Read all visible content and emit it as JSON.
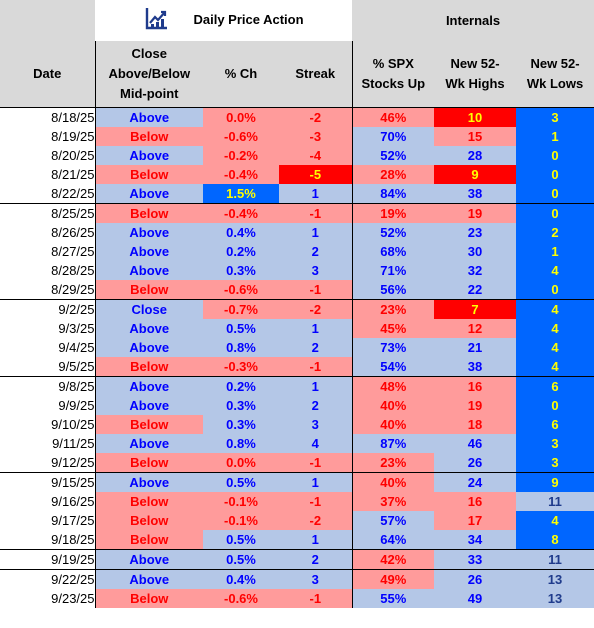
{
  "header": {
    "left_group": "Daily Price Action",
    "right_group": "Internals",
    "logo_icon": "chart-logo-icon",
    "columns": {
      "date": "Date",
      "close": [
        "Close",
        "Above/Below",
        "Mid-point"
      ],
      "pct": "% Ch",
      "streak": "Streak",
      "spx": [
        "% SPX",
        "Stocks Up"
      ],
      "highs": [
        "New 52-",
        "Wk Highs"
      ],
      "lows": [
        "New 52-",
        "Wk Lows"
      ]
    }
  },
  "colors": {
    "blue_fill": "#b4c7e7",
    "blue_text": "#0000ff",
    "red_fill": "#ff9b9b",
    "red_text": "#ff0000",
    "bright_red": "#ff0000",
    "bright_blue": "#0066ff",
    "highlight_text": "#ffff00",
    "header_gray": "#d9d9d9"
  },
  "rows": [
    {
      "date": "8/18/25",
      "close": "Above",
      "pct": "0.0%",
      "streak": "-2",
      "spx": "46%",
      "highs": "10",
      "lows": "3"
    },
    {
      "date": "8/19/25",
      "close": "Below",
      "pct": "-0.6%",
      "streak": "-3",
      "spx": "70%",
      "highs": "15",
      "lows": "1"
    },
    {
      "date": "8/20/25",
      "close": "Above",
      "pct": "-0.2%",
      "streak": "-4",
      "spx": "52%",
      "highs": "28",
      "lows": "0"
    },
    {
      "date": "8/21/25",
      "close": "Below",
      "pct": "-0.4%",
      "streak": "-5",
      "spx": "28%",
      "highs": "9",
      "lows": "0"
    },
    {
      "date": "8/22/25",
      "close": "Above",
      "pct": "1.5%",
      "streak": "1",
      "spx": "84%",
      "highs": "38",
      "lows": "0"
    },
    {
      "date": "8/25/25",
      "close": "Below",
      "pct": "-0.4%",
      "streak": "-1",
      "spx": "19%",
      "highs": "19",
      "lows": "0"
    },
    {
      "date": "8/26/25",
      "close": "Above",
      "pct": "0.4%",
      "streak": "1",
      "spx": "52%",
      "highs": "23",
      "lows": "2"
    },
    {
      "date": "8/27/25",
      "close": "Above",
      "pct": "0.2%",
      "streak": "2",
      "spx": "68%",
      "highs": "30",
      "lows": "1"
    },
    {
      "date": "8/28/25",
      "close": "Above",
      "pct": "0.3%",
      "streak": "3",
      "spx": "71%",
      "highs": "32",
      "lows": "4"
    },
    {
      "date": "8/29/25",
      "close": "Below",
      "pct": "-0.6%",
      "streak": "-1",
      "spx": "56%",
      "highs": "22",
      "lows": "0"
    },
    {
      "date": "9/2/25",
      "close": "Close",
      "pct": "-0.7%",
      "streak": "-2",
      "spx": "23%",
      "highs": "7",
      "lows": "4"
    },
    {
      "date": "9/3/25",
      "close": "Above",
      "pct": "0.5%",
      "streak": "1",
      "spx": "45%",
      "highs": "12",
      "lows": "4"
    },
    {
      "date": "9/4/25",
      "close": "Above",
      "pct": "0.8%",
      "streak": "2",
      "spx": "73%",
      "highs": "21",
      "lows": "4"
    },
    {
      "date": "9/5/25",
      "close": "Below",
      "pct": "-0.3%",
      "streak": "-1",
      "spx": "54%",
      "highs": "38",
      "lows": "4"
    },
    {
      "date": "9/8/25",
      "close": "Above",
      "pct": "0.2%",
      "streak": "1",
      "spx": "48%",
      "highs": "16",
      "lows": "6"
    },
    {
      "date": "9/9/25",
      "close": "Above",
      "pct": "0.3%",
      "streak": "2",
      "spx": "40%",
      "highs": "19",
      "lows": "0"
    },
    {
      "date": "9/10/25",
      "close": "Below",
      "pct": "0.3%",
      "streak": "3",
      "spx": "40%",
      "highs": "18",
      "lows": "6"
    },
    {
      "date": "9/11/25",
      "close": "Above",
      "pct": "0.8%",
      "streak": "4",
      "spx": "87%",
      "highs": "46",
      "lows": "3"
    },
    {
      "date": "9/12/25",
      "close": "Below",
      "pct": "0.0%",
      "streak": "-1",
      "spx": "23%",
      "highs": "26",
      "lows": "3"
    },
    {
      "date": "9/15/25",
      "close": "Above",
      "pct": "0.5%",
      "streak": "1",
      "spx": "40%",
      "highs": "24",
      "lows": "9"
    },
    {
      "date": "9/16/25",
      "close": "Below",
      "pct": "-0.1%",
      "streak": "-1",
      "spx": "37%",
      "highs": "16",
      "lows": "11"
    },
    {
      "date": "9/17/25",
      "close": "Below",
      "pct": "-0.1%",
      "streak": "-2",
      "spx": "57%",
      "highs": "17",
      "lows": "4"
    },
    {
      "date": "9/18/25",
      "close": "Below",
      "pct": "0.5%",
      "streak": "1",
      "spx": "64%",
      "highs": "34",
      "lows": "8"
    },
    {
      "date": "9/19/25",
      "close": "Above",
      "pct": "0.5%",
      "streak": "2",
      "spx": "42%",
      "highs": "33",
      "lows": "11"
    },
    {
      "date": "9/22/25",
      "close": "Above",
      "pct": "0.4%",
      "streak": "3",
      "spx": "49%",
      "highs": "26",
      "lows": "13"
    },
    {
      "date": "9/23/25",
      "close": "Below",
      "pct": "-0.6%",
      "streak": "-1",
      "spx": "55%",
      "highs": "49",
      "lows": "13"
    }
  ]
}
